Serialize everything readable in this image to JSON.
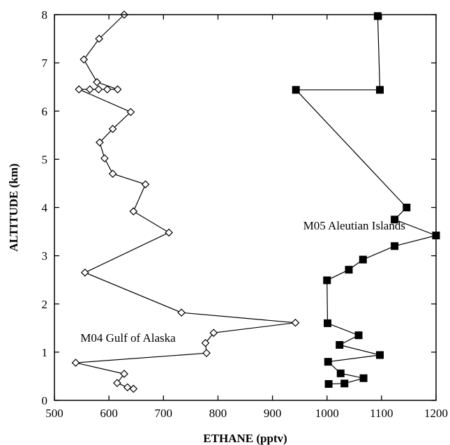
{
  "chart_data": {
    "type": "scatter",
    "xlabel": "ETHANE (pptv)",
    "ylabel": "ALTITUDE (km)",
    "xlim": [
      500,
      1200
    ],
    "ylim": [
      0,
      8
    ],
    "x_ticks": [
      500,
      600,
      700,
      800,
      900,
      1000,
      1100,
      1200
    ],
    "y_ticks": [
      0,
      1,
      2,
      3,
      4,
      5,
      6,
      7,
      8
    ],
    "grid": false,
    "series": [
      {
        "name": "M04 Gulf of Alaska",
        "marker": "open-diamond",
        "color": "#000000",
        "points": [
          {
            "x": 628,
            "y": 8.0
          },
          {
            "x": 582,
            "y": 7.5
          },
          {
            "x": 554,
            "y": 7.07
          },
          {
            "x": 578,
            "y": 6.6
          },
          {
            "x": 616,
            "y": 6.45
          },
          {
            "x": 597,
            "y": 6.45
          },
          {
            "x": 581,
            "y": 6.45
          },
          {
            "x": 565,
            "y": 6.45
          },
          {
            "x": 545,
            "y": 6.45
          },
          {
            "x": 640,
            "y": 5.98
          },
          {
            "x": 607,
            "y": 5.63
          },
          {
            "x": 583,
            "y": 5.35
          },
          {
            "x": 592,
            "y": 5.02
          },
          {
            "x": 607,
            "y": 4.7
          },
          {
            "x": 667,
            "y": 4.48
          },
          {
            "x": 645,
            "y": 3.92
          },
          {
            "x": 710,
            "y": 3.48
          },
          {
            "x": 556,
            "y": 2.65
          },
          {
            "x": 733,
            "y": 1.82
          },
          {
            "x": 942,
            "y": 1.61
          },
          {
            "x": 792,
            "y": 1.4
          },
          {
            "x": 777,
            "y": 1.19
          },
          {
            "x": 779,
            "y": 0.98
          },
          {
            "x": 539,
            "y": 0.78
          },
          {
            "x": 628,
            "y": 0.55
          },
          {
            "x": 615,
            "y": 0.36
          },
          {
            "x": 634,
            "y": 0.27
          },
          {
            "x": 645,
            "y": 0.24
          }
        ]
      },
      {
        "name": "M05 Aleutian Islands",
        "marker": "filled-square",
        "color": "#000000",
        "points": [
          {
            "x": 1093,
            "y": 7.97
          },
          {
            "x": 1097,
            "y": 6.44
          },
          {
            "x": 943,
            "y": 6.44
          },
          {
            "x": 1146,
            "y": 4.0
          },
          {
            "x": 1124,
            "y": 3.75
          },
          {
            "x": 1200,
            "y": 3.42
          },
          {
            "x": 1124,
            "y": 3.2
          },
          {
            "x": 1066,
            "y": 2.92
          },
          {
            "x": 1040,
            "y": 2.71
          },
          {
            "x": 1000,
            "y": 2.49
          },
          {
            "x": 1001,
            "y": 1.6
          },
          {
            "x": 1058,
            "y": 1.35
          },
          {
            "x": 1023,
            "y": 1.15
          },
          {
            "x": 1097,
            "y": 0.94
          },
          {
            "x": 1002,
            "y": 0.8
          },
          {
            "x": 1025,
            "y": 0.56
          },
          {
            "x": 1067,
            "y": 0.46
          },
          {
            "x": 1032,
            "y": 0.35
          },
          {
            "x": 1003,
            "y": 0.34
          }
        ]
      }
    ],
    "annotations": [
      {
        "text": "M05 Aleutian Islands",
        "x": 1050,
        "y": 3.63
      },
      {
        "text": "M04 Gulf of Alaska",
        "x": 635,
        "y": 1.3
      }
    ]
  }
}
